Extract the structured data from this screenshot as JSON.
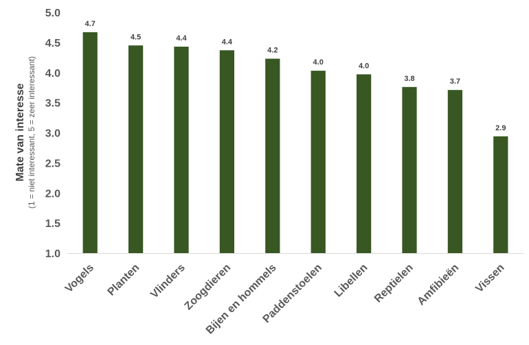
{
  "chart_data": {
    "type": "bar",
    "categories": [
      "Vogels",
      "Planten",
      "Vlinders",
      "Zoogdieren",
      "Bijen en hommels",
      "Paddenstoelen",
      "Libellen",
      "Reptielen",
      "Amfibieën",
      "Vissen"
    ],
    "values": [
      4.67,
      4.45,
      4.43,
      4.37,
      4.23,
      4.03,
      3.97,
      3.76,
      3.71,
      2.94
    ],
    "data_labels": [
      "4.7",
      "4.5",
      "4.4",
      "4.4",
      "4.2",
      "4.0",
      "4.0",
      "3.8",
      "3.7",
      "2.9"
    ],
    "ylabel": "Mate van interesse",
    "ylabel_sub": "(1 = niet interessant, 5 = zeer interessant)",
    "ylim": [
      1.0,
      5.0
    ],
    "yticks": [
      "1.0",
      "1.5",
      "2.0",
      "2.5",
      "3.0",
      "3.5",
      "4.0",
      "4.5",
      "5.0"
    ],
    "grid": false,
    "legend": "none",
    "bar_color": "#385723"
  }
}
